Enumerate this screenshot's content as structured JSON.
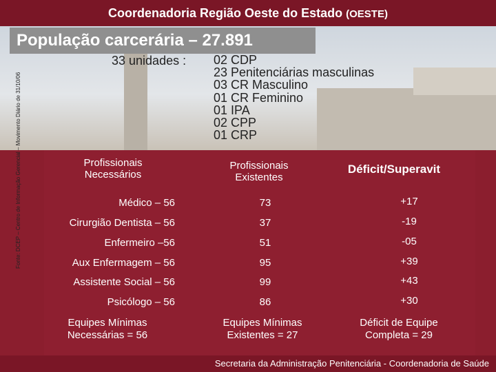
{
  "header": {
    "title": "Coordenadoria Região Oeste do Estado",
    "tag": "(OESTE)"
  },
  "population_title": "População carcerária – 27.891",
  "units": {
    "label": "33 unidades :",
    "items": [
      "02 CDP",
      "23 Penitenciárias masculinas",
      "03 CR Masculino",
      "01 CR Feminino",
      "01 IPA",
      "02 CPP",
      "01 CRP"
    ]
  },
  "side_note": "Fonte: DCEP – Centro de Informação Gerencial – Movimento Diário de 31/10/06",
  "table": {
    "headers": [
      "Profissionais Necessários",
      "Profissionais Existentes",
      "Déficit/Superavit"
    ],
    "rows": [
      {
        "needed": "Médico – 56",
        "existing": "73",
        "diff": "+17"
      },
      {
        "needed": "Cirurgião Dentista – 56",
        "existing": "37",
        "diff": "-19"
      },
      {
        "needed": "Enfermeiro –56",
        "existing": "51",
        "diff": "-05"
      },
      {
        "needed": "Aux Enfermagem – 56",
        "existing": "95",
        "diff": "+39"
      },
      {
        "needed": "Assistente Social – 56",
        "existing": "99",
        "diff": "+43"
      },
      {
        "needed": "Psicólogo – 56",
        "existing": "86",
        "diff": "+30"
      }
    ],
    "footer": [
      "Equipes Mínimas Necessárias = 56",
      "Equipes Mínimas Existentes = 27",
      "Déficit de Equipe Completa = 29"
    ]
  },
  "bottom_text": "Secretaria da Administração Penitenciária - Coordenadoria de Saúde"
}
